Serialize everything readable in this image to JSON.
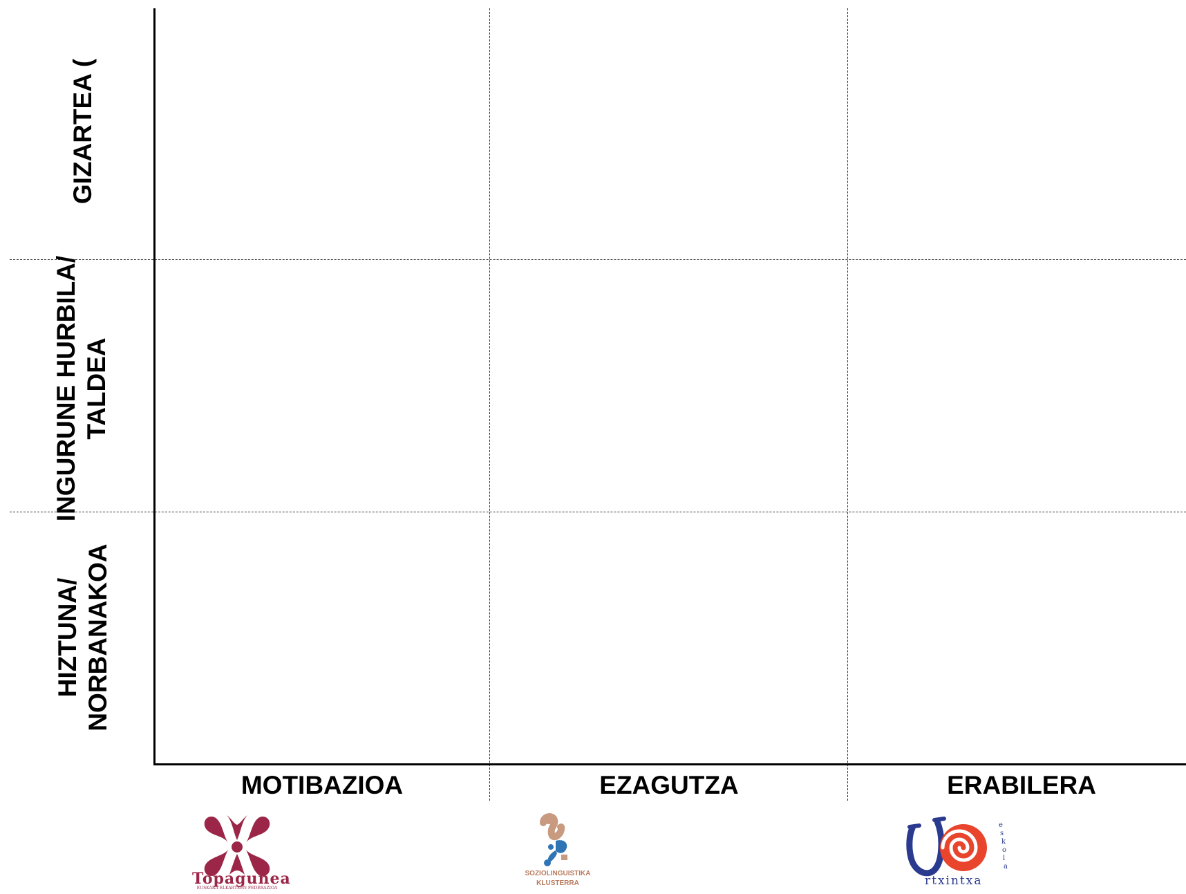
{
  "rows": [
    {
      "lines": [
        "GIZARTEA ("
      ]
    },
    {
      "lines": [
        "INGURUNE HURBILA/",
        "TALDEA"
      ]
    },
    {
      "lines": [
        "HIZTUNA/",
        "NORBANAKOA"
      ]
    }
  ],
  "columns": [
    "MOTIBAZIOA",
    "EZAGUTZA",
    "ERABILERA"
  ],
  "logos": {
    "topagunea": {
      "name": "Topagunea",
      "subtitle": "EUSKARA ELKARTEEN FEDERAZIOA"
    },
    "klusterra": {
      "line1": "SOZIOLINGUISTIKA",
      "line2": "KLUSTERRA"
    },
    "urtxintxa": {
      "name": "rtxintxa",
      "side": "eskola"
    }
  },
  "colors": {
    "topagunea": "#9b2647",
    "klusterra_brown": "#c89a80",
    "klusterra_blue": "#2f74b5",
    "urtxintxa_blue": "#2a3a8f",
    "urtxintxa_red": "#e8452c"
  }
}
